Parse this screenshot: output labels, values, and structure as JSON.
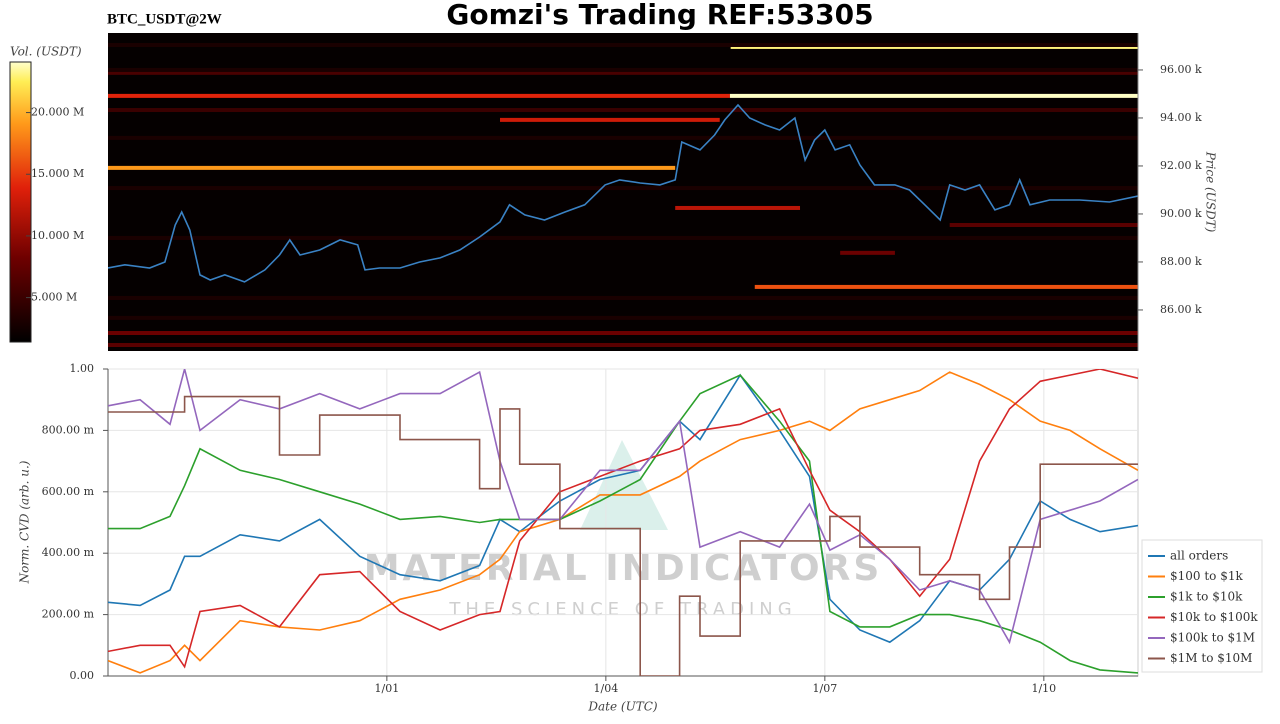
{
  "chart_data": [
    {
      "type": "heatmap",
      "title": "Gomzi's Trading REF:53305",
      "subtitle": "BTC_USDT@2W",
      "ylabel": "Price (USDT)",
      "xlim": [
        -2.82,
        11.29
      ],
      "ylim": [
        84290,
        97540
      ],
      "yticks": [
        {
          "value": 86000,
          "label": "86.00 k"
        },
        {
          "value": 88000,
          "label": "88.00 k"
        },
        {
          "value": 90000,
          "label": "90.00 k"
        },
        {
          "value": 92000,
          "label": "92.00 k"
        },
        {
          "value": 94000,
          "label": "94.00 k"
        },
        {
          "value": 96000,
          "label": "96.00 k"
        }
      ],
      "colorbar": {
        "label": "Vol. (USDT)",
        "zlim": [
          1400000,
          24100000
        ],
        "ticks": [
          {
            "value": 5000000,
            "label": "5.000 M"
          },
          {
            "value": 10000000,
            "label": "10.000 M"
          },
          {
            "value": 15000000,
            "label": "15.000 M"
          },
          {
            "value": 20000000,
            "label": "20.000 M"
          }
        ]
      },
      "levels": [
        {
          "y": 96960,
          "x": [
            5.71,
            11.29
          ],
          "value": 23000000
        },
        {
          "y": 94920,
          "x": [
            -2.82,
            5.7
          ],
          "value": 14000000
        },
        {
          "y": 94920,
          "x": [
            5.7,
            11.29
          ],
          "value": 24000000
        },
        {
          "y": 93920,
          "x": [
            2.55,
            5.56
          ],
          "value": 13000000
        },
        {
          "y": 91920,
          "x": [
            -2.82,
            4.95
          ],
          "value": 19000000
        },
        {
          "y": 86960,
          "x": [
            6.04,
            11.29
          ],
          "value": 16000000
        },
        {
          "y": 90250,
          "x": [
            4.95,
            6.66
          ],
          "value": 12000000
        },
        {
          "y": 85040,
          "x": [
            -2.82,
            11.29
          ],
          "value": 8000000
        },
        {
          "y": 84540,
          "x": [
            -2.82,
            11.29
          ],
          "value": 7000000
        },
        {
          "y": 95880,
          "x": [
            -2.82,
            11.29
          ],
          "value": 6000000
        },
        {
          "y": 94330,
          "x": [
            -2.82,
            11.29
          ],
          "value": 5000000
        },
        {
          "y": 88380,
          "x": [
            7.21,
            7.96
          ],
          "value": 8000000
        },
        {
          "y": 89540,
          "x": [
            8.71,
            11.29
          ],
          "value": 7000000
        },
        {
          "y": 97040,
          "x": [
            -2.82,
            11.29
          ],
          "value": 3000000
        },
        {
          "y": 96000,
          "x": [
            -2.82,
            11.29
          ],
          "value": 3000000
        },
        {
          "y": 93170,
          "x": [
            -2.82,
            11.29
          ],
          "value": 3000000
        },
        {
          "y": 91080,
          "x": [
            -2.82,
            11.29
          ],
          "value": 3000000
        },
        {
          "y": 89000,
          "x": [
            -2.82,
            11.29
          ],
          "value": 3000000
        },
        {
          "y": 86500,
          "x": [
            -2.82,
            11.29
          ],
          "value": 3000000
        },
        {
          "y": 85670,
          "x": [
            -2.82,
            11.29
          ],
          "value": 3000000
        }
      ],
      "line": {
        "color": "#3a82c4",
        "x": [
          -2.82,
          -2.59,
          -2.25,
          -2.04,
          -1.9,
          -1.81,
          -1.7,
          -1.56,
          -1.42,
          -1.22,
          -0.95,
          -0.67,
          -0.47,
          -0.33,
          -0.19,
          0.08,
          0.36,
          0.6,
          0.7,
          0.9,
          1.18,
          1.45,
          1.73,
          2.0,
          2.27,
          2.55,
          2.68,
          2.89,
          3.16,
          3.44,
          3.71,
          3.99,
          4.19,
          4.47,
          4.74,
          4.95,
          5.04,
          5.29,
          5.49,
          5.63,
          5.81,
          5.97,
          6.18,
          6.38,
          6.59,
          6.73,
          6.86,
          7.0,
          7.14,
          7.34,
          7.48,
          7.68,
          7.96,
          8.16,
          8.37,
          8.58,
          8.71,
          8.92,
          9.12,
          9.33,
          9.53,
          9.67,
          9.81,
          10.08,
          10.49,
          10.9,
          11.29
        ],
        "values": [
          87750,
          87880,
          87750,
          88000,
          89540,
          90080,
          89330,
          87460,
          87250,
          87460,
          87170,
          87670,
          88290,
          88920,
          88290,
          88500,
          88920,
          88710,
          87670,
          87750,
          87750,
          88000,
          88170,
          88500,
          89040,
          89670,
          90380,
          89960,
          89750,
          90080,
          90380,
          91210,
          91420,
          91290,
          91210,
          91420,
          93000,
          92670,
          93290,
          93920,
          94540,
          94000,
          93710,
          93500,
          94000,
          92250,
          93080,
          93500,
          92670,
          92880,
          92040,
          91210,
          91210,
          91000,
          90380,
          89750,
          91210,
          91000,
          91210,
          90170,
          90380,
          91420,
          90380,
          90580,
          90580,
          90500,
          90750
        ]
      }
    },
    {
      "type": "line",
      "xlabel": "Date (UTC)",
      "ylabel": "Norm. CVD (arb. u.)",
      "annotations": [
        "MATERIAL INDICATORS",
        "THE SCIENCE OF TRADING"
      ],
      "xlim": [
        -2.82,
        11.29
      ],
      "xticks": [
        {
          "value": 1,
          "label": "1/01"
        },
        {
          "value": 4,
          "label": "1/04"
        },
        {
          "value": 7,
          "label": "1/07"
        },
        {
          "value": 10,
          "label": "1/10"
        }
      ],
      "ylim": [
        0,
        1
      ],
      "yticks": [
        {
          "value": 0,
          "label": "0.00"
        },
        {
          "value": 0.2,
          "label": "200.00 m"
        },
        {
          "value": 0.4,
          "label": "400.00 m"
        },
        {
          "value": 0.6,
          "label": "600.00 m"
        },
        {
          "value": 0.8,
          "label": "800.00 m"
        },
        {
          "value": 1,
          "label": "1.00"
        }
      ],
      "grid": true,
      "legend": "lower right",
      "x": [
        -2.82,
        -2.38,
        -1.97,
        -1.77,
        -1.56,
        -1.01,
        -0.47,
        0.08,
        0.63,
        1.18,
        1.73,
        2.27,
        2.55,
        2.82,
        3.37,
        3.92,
        4.47,
        5.01,
        5.29,
        5.84,
        6.38,
        6.79,
        7.07,
        7.48,
        7.89,
        8.3,
        8.71,
        9.12,
        9.53,
        9.95,
        10.36,
        10.77,
        11.29
      ],
      "series": [
        {
          "name": "all orders",
          "color": "#1f77b4",
          "values": [
            0.24,
            0.23,
            0.28,
            0.39,
            0.39,
            0.46,
            0.44,
            0.51,
            0.39,
            0.33,
            0.31,
            0.36,
            0.51,
            0.47,
            0.57,
            0.64,
            0.67,
            0.83,
            0.77,
            0.98,
            0.8,
            0.65,
            0.25,
            0.15,
            0.11,
            0.18,
            0.31,
            0.28,
            0.38,
            0.57,
            0.51,
            0.47,
            0.49
          ]
        },
        {
          "name": "$100 to $1k",
          "color": "#ff7f0e",
          "values": [
            0.05,
            0.01,
            0.05,
            0.1,
            0.05,
            0.18,
            0.16,
            0.15,
            0.18,
            0.25,
            0.28,
            0.33,
            0.38,
            0.47,
            0.51,
            0.59,
            0.59,
            0.65,
            0.7,
            0.77,
            0.8,
            0.83,
            0.8,
            0.87,
            0.9,
            0.93,
            0.99,
            0.95,
            0.9,
            0.83,
            0.8,
            0.74,
            0.67
          ]
        },
        {
          "name": "$1k to $10k",
          "color": "#2ca02c",
          "values": [
            0.48,
            0.48,
            0.52,
            0.62,
            0.74,
            0.67,
            0.64,
            0.6,
            0.56,
            0.51,
            0.52,
            0.5,
            0.51,
            0.51,
            0.51,
            0.57,
            0.64,
            0.83,
            0.92,
            0.98,
            0.83,
            0.7,
            0.21,
            0.16,
            0.16,
            0.2,
            0.2,
            0.18,
            0.15,
            0.11,
            0.05,
            0.02,
            0.01
          ]
        },
        {
          "name": "$10k to $100k",
          "color": "#d62728",
          "values": [
            0.08,
            0.1,
            0.1,
            0.03,
            0.21,
            0.23,
            0.16,
            0.33,
            0.34,
            0.21,
            0.15,
            0.2,
            0.21,
            0.44,
            0.6,
            0.65,
            0.7,
            0.74,
            0.8,
            0.82,
            0.87,
            0.67,
            0.54,
            0.47,
            0.38,
            0.26,
            0.38,
            0.7,
            0.87,
            0.96,
            0.98,
            1.0,
            0.97
          ]
        },
        {
          "name": "$100k to $1M",
          "color": "#9467bd",
          "values": [
            0.88,
            0.9,
            0.82,
            1.0,
            0.8,
            0.9,
            0.87,
            0.92,
            0.87,
            0.92,
            0.92,
            0.99,
            0.7,
            0.51,
            0.51,
            0.67,
            0.67,
            0.83,
            0.42,
            0.47,
            0.42,
            0.56,
            0.41,
            0.46,
            0.38,
            0.28,
            0.31,
            0.28,
            0.11,
            0.51,
            0.54,
            0.57,
            0.64
          ]
        },
        {
          "name": "$1M to $10M",
          "color": "#8c564b",
          "step": true,
          "values": [
            0.86,
            0.86,
            0.86,
            0.91,
            0.91,
            0.91,
            0.72,
            0.85,
            0.85,
            0.77,
            0.77,
            0.61,
            0.87,
            0.69,
            0.48,
            0.48,
            0.0,
            0.26,
            0.13,
            0.44,
            0.44,
            0.44,
            0.52,
            0.42,
            0.42,
            0.33,
            0.33,
            0.25,
            0.42,
            0.69,
            0.69,
            0.69,
            0.69
          ]
        }
      ]
    }
  ]
}
